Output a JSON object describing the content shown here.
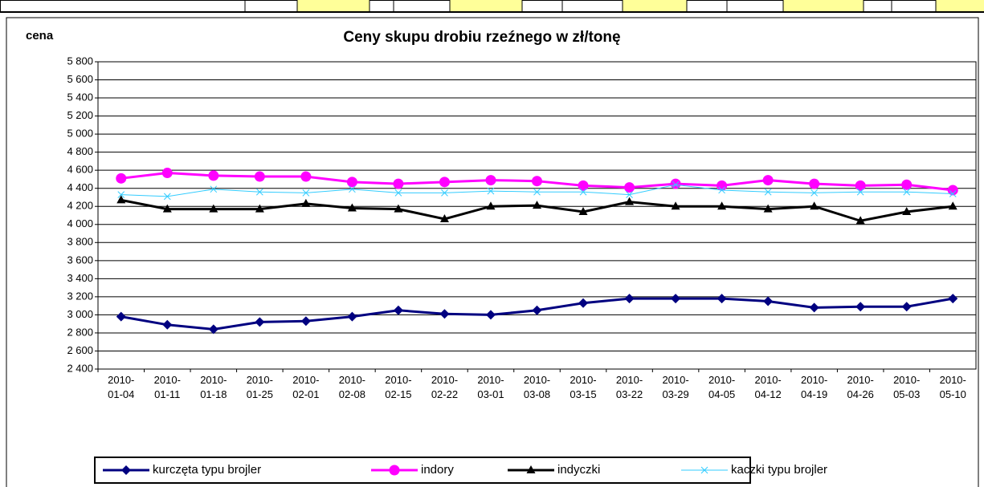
{
  "chart_data": {
    "type": "line",
    "title": "Ceny skupu drobiu rzeźnego w zł/tonę",
    "y_label": "cena",
    "categories": [
      "2010-\n01-04",
      "2010-\n01-11",
      "2010-\n01-18",
      "2010-\n01-25",
      "2010-\n02-01",
      "2010-\n02-08",
      "2010-\n02-15",
      "2010-\n02-22",
      "2010-\n03-01",
      "2010-\n03-08",
      "2010-\n03-15",
      "2010-\n03-22",
      "2010-\n03-29",
      "2010-\n04-05",
      "2010-\n04-12",
      "2010-\n04-19",
      "2010-\n04-26",
      "2010-\n05-03",
      "2010-\n05-10"
    ],
    "series": [
      {
        "name": "kurczęta typu brojler",
        "color": "#000080",
        "marker": "diamond",
        "values": [
          2980,
          2890,
          2840,
          2920,
          2930,
          2980,
          3050,
          3010,
          3000,
          3050,
          3130,
          3180,
          3180,
          3180,
          3150,
          3080,
          3090,
          3090,
          3180
        ]
      },
      {
        "name": "indory",
        "color": "#ff00ff",
        "marker": "circle",
        "values": [
          4510,
          4570,
          4540,
          4530,
          4530,
          4470,
          4450,
          4470,
          4490,
          4480,
          4430,
          4410,
          4450,
          4430,
          4490,
          4450,
          4430,
          4440,
          4380
        ]
      },
      {
        "name": "indyczki",
        "color": "#000000",
        "marker": "triangle",
        "values": [
          4270,
          4170,
          4170,
          4170,
          4230,
          4180,
          4170,
          4060,
          4200,
          4210,
          4140,
          4250,
          4200,
          4200,
          4170,
          4200,
          4040,
          4140,
          4200
        ]
      },
      {
        "name": "kaczki typu brojler",
        "color": "#33ccff",
        "marker": "x",
        "values": [
          4330,
          4310,
          4390,
          4360,
          4350,
          4390,
          4350,
          4350,
          4370,
          4360,
          4360,
          4330,
          4440,
          4380,
          4360,
          4350,
          4360,
          4360,
          4340
        ]
      }
    ],
    "ylim": [
      2400,
      5800
    ],
    "yticks": [
      {
        "value": 2400,
        "label": "2 400"
      },
      {
        "value": 2600,
        "label": "2 600"
      },
      {
        "value": 2800,
        "label": "2 800"
      },
      {
        "value": 3000,
        "label": "3 000"
      },
      {
        "value": 3200,
        "label": "3 200"
      },
      {
        "value": 3400,
        "label": "3 400"
      },
      {
        "value": 3600,
        "label": "3 600"
      },
      {
        "value": 3800,
        "label": "3 800"
      },
      {
        "value": 4000,
        "label": "4 000"
      },
      {
        "value": 4200,
        "label": "4 200"
      },
      {
        "value": 4400,
        "label": "4 400"
      },
      {
        "value": 4600,
        "label": "4 600"
      },
      {
        "value": 4800,
        "label": "4 800"
      },
      {
        "value": 5000,
        "label": "5 000"
      },
      {
        "value": 5200,
        "label": "5 200"
      },
      {
        "value": 5400,
        "label": "5 400"
      },
      {
        "value": 5600,
        "label": "5 600"
      },
      {
        "value": 5800,
        "label": "5 800"
      }
    ],
    "grid": true,
    "legend": "bottom"
  }
}
